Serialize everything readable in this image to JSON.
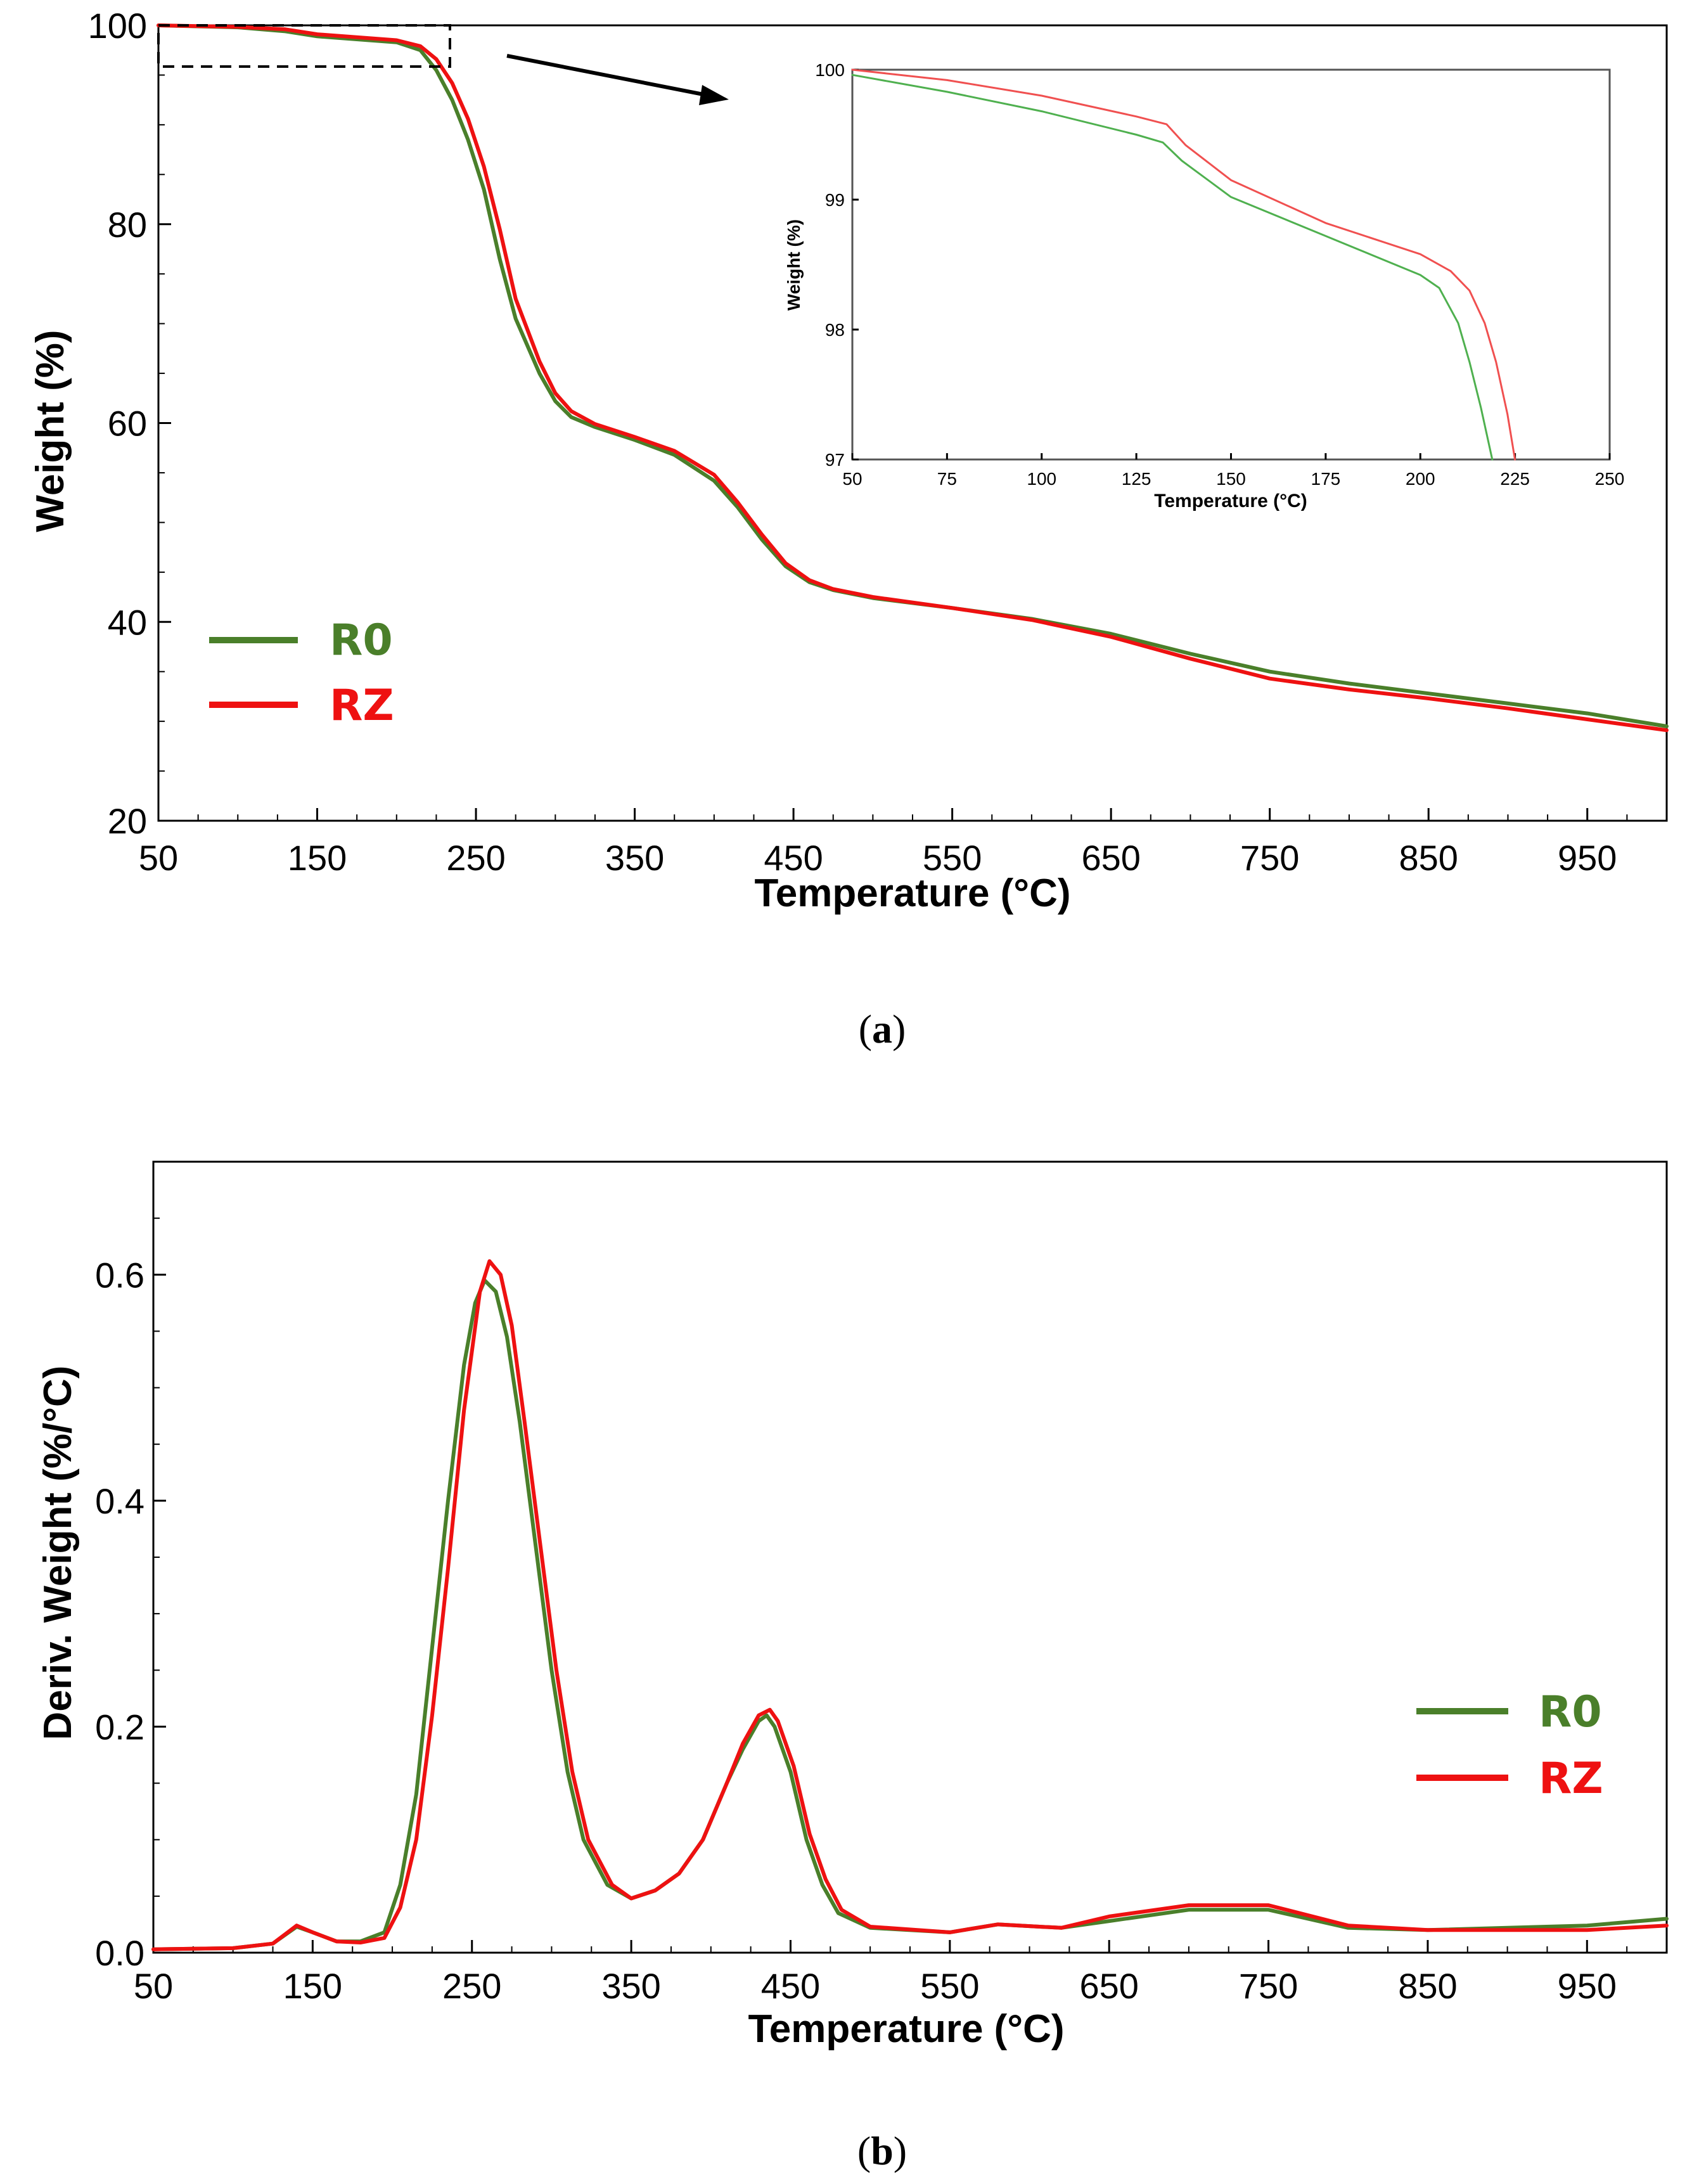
{
  "figure": {
    "panel_a_label": "a",
    "panel_b_label": "b",
    "colors": {
      "r0": "#4a7f2a",
      "rz": "#ee1111",
      "inset_r0": "#4fb04f",
      "inset_rz": "#f05050"
    }
  },
  "chart_data": [
    {
      "id": "panel-a",
      "type": "line",
      "title": "",
      "xlabel": "Temperature (°C)",
      "ylabel": "Weight (%)",
      "xlim": [
        50,
        1000
      ],
      "ylim": [
        20,
        100
      ],
      "xticks": [
        50,
        150,
        250,
        350,
        450,
        550,
        650,
        750,
        850,
        950
      ],
      "yticks": [
        20,
        40,
        60,
        80,
        100
      ],
      "legend": {
        "position": "center-left",
        "entries": [
          "R0",
          "RZ"
        ]
      },
      "annotation": "dashed box at 50–230 °C, 97–100 % magnified in inset",
      "series": [
        {
          "name": "R0",
          "color": "#4a7f2a",
          "x": [
            50,
            100,
            130,
            150,
            200,
            215,
            225,
            235,
            245,
            255,
            265,
            275,
            290,
            300,
            310,
            325,
            350,
            375,
            400,
            415,
            430,
            445,
            460,
            475,
            500,
            550,
            600,
            650,
            700,
            750,
            800,
            850,
            900,
            950,
            1000
          ],
          "y": [
            100,
            99.8,
            99.4,
            98.9,
            98.3,
            97.5,
            95.5,
            92.5,
            88.5,
            83.5,
            76.5,
            70.5,
            65,
            62.2,
            60.6,
            59.6,
            58.3,
            56.8,
            54.2,
            51.5,
            48.3,
            45.6,
            44,
            43.2,
            42.4,
            41.4,
            40.3,
            38.8,
            36.8,
            35,
            33.8,
            32.8,
            31.8,
            30.8,
            29.5
          ]
        },
        {
          "name": "RZ",
          "color": "#ee1111",
          "x": [
            50,
            100,
            130,
            150,
            200,
            215,
            225,
            235,
            245,
            255,
            265,
            275,
            290,
            300,
            310,
            325,
            350,
            375,
            400,
            415,
            430,
            445,
            460,
            475,
            500,
            550,
            600,
            650,
            700,
            750,
            800,
            850,
            900,
            950,
            1000
          ],
          "y": [
            100,
            99.85,
            99.6,
            99.1,
            98.5,
            97.9,
            96.6,
            94.2,
            90.6,
            85.8,
            79.5,
            72.5,
            66.2,
            63,
            61.2,
            59.9,
            58.6,
            57.2,
            54.8,
            52,
            48.8,
            45.9,
            44.2,
            43.3,
            42.5,
            41.4,
            40.2,
            38.5,
            36.3,
            34.3,
            33.2,
            32.3,
            31.3,
            30.2,
            29.1
          ]
        }
      ]
    },
    {
      "id": "panel-a-inset",
      "type": "line",
      "title": "",
      "xlabel": "Temperature (°C)",
      "ylabel": "Weight (%)",
      "xlim": [
        50,
        250
      ],
      "ylim": [
        97,
        100
      ],
      "xticks": [
        50,
        75,
        100,
        125,
        150,
        175,
        200,
        225,
        250
      ],
      "yticks": [
        97,
        98,
        99,
        100
      ],
      "series": [
        {
          "name": "R0",
          "color": "#4fb04f",
          "x": [
            50,
            75,
            100,
            125,
            132,
            137,
            150,
            175,
            200,
            205,
            210,
            213,
            216,
            219
          ],
          "y": [
            99.96,
            99.83,
            99.68,
            99.5,
            99.44,
            99.3,
            99.02,
            98.72,
            98.42,
            98.32,
            98.05,
            97.75,
            97.4,
            97.0
          ]
        },
        {
          "name": "RZ",
          "color": "#f05050",
          "x": [
            50,
            75,
            100,
            125,
            133,
            138,
            150,
            175,
            200,
            208,
            213,
            217,
            220,
            223,
            225
          ],
          "y": [
            100,
            99.92,
            99.8,
            99.64,
            99.58,
            99.42,
            99.15,
            98.82,
            98.58,
            98.45,
            98.3,
            98.05,
            97.75,
            97.35,
            97.0
          ]
        }
      ]
    },
    {
      "id": "panel-b",
      "type": "line",
      "title": "",
      "xlabel": "Temperature (°C)",
      "ylabel": "Deriv. Weight (%/°C)",
      "xlim": [
        50,
        1000
      ],
      "ylim": [
        0,
        0.7
      ],
      "xticks": [
        50,
        150,
        250,
        350,
        450,
        550,
        650,
        750,
        850,
        950
      ],
      "yticks": [
        0.0,
        0.2,
        0.4,
        0.6
      ],
      "ytick_labels": [
        "0.0",
        "0.2",
        "0.4",
        "0.6"
      ],
      "legend": {
        "position": "right",
        "entries": [
          "R0",
          "RZ"
        ]
      },
      "series": [
        {
          "name": "R0",
          "color": "#4a7f2a",
          "x": [
            50,
            100,
            125,
            140,
            150,
            165,
            180,
            195,
            205,
            215,
            225,
            235,
            245,
            252,
            258,
            265,
            272,
            280,
            290,
            300,
            310,
            320,
            335,
            350,
            365,
            380,
            395,
            410,
            420,
            430,
            435,
            440,
            450,
            460,
            470,
            480,
            500,
            550,
            580,
            620,
            650,
            700,
            750,
            800,
            850,
            950,
            1000
          ],
          "y": [
            0.003,
            0.004,
            0.008,
            0.023,
            0.018,
            0.01,
            0.01,
            0.018,
            0.06,
            0.14,
            0.27,
            0.4,
            0.52,
            0.575,
            0.595,
            0.585,
            0.545,
            0.47,
            0.36,
            0.25,
            0.16,
            0.1,
            0.06,
            0.048,
            0.055,
            0.07,
            0.1,
            0.15,
            0.18,
            0.205,
            0.21,
            0.2,
            0.16,
            0.1,
            0.06,
            0.035,
            0.022,
            0.018,
            0.025,
            0.022,
            0.028,
            0.038,
            0.038,
            0.022,
            0.02,
            0.024,
            0.03
          ]
        },
        {
          "name": "RZ",
          "color": "#ee1111",
          "x": [
            50,
            100,
            125,
            140,
            150,
            165,
            180,
            195,
            205,
            215,
            225,
            235,
            245,
            255,
            261,
            268,
            275,
            283,
            293,
            303,
            313,
            323,
            338,
            350,
            365,
            380,
            395,
            410,
            420,
            430,
            437,
            442,
            452,
            462,
            472,
            482,
            500,
            550,
            580,
            620,
            650,
            700,
            750,
            800,
            850,
            950,
            1000
          ],
          "y": [
            0.003,
            0.004,
            0.008,
            0.024,
            0.018,
            0.01,
            0.009,
            0.013,
            0.04,
            0.1,
            0.21,
            0.34,
            0.48,
            0.585,
            0.612,
            0.6,
            0.555,
            0.47,
            0.36,
            0.25,
            0.16,
            0.1,
            0.06,
            0.048,
            0.055,
            0.07,
            0.1,
            0.15,
            0.185,
            0.21,
            0.215,
            0.205,
            0.165,
            0.105,
            0.065,
            0.038,
            0.023,
            0.018,
            0.025,
            0.022,
            0.032,
            0.042,
            0.042,
            0.024,
            0.02,
            0.02,
            0.024
          ]
        }
      ]
    }
  ]
}
